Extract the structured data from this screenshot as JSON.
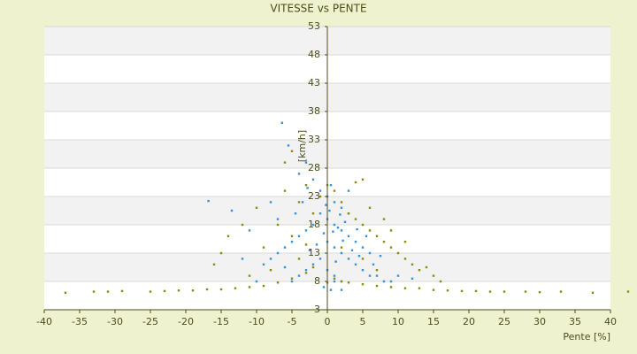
{
  "chart_data": {
    "type": "scatter",
    "title": "VITESSE vs PENTE",
    "x_label": "Pente [%]",
    "y_label": "[km/h]",
    "xlim": [
      -40,
      40
    ],
    "xticks": [
      -40,
      -35,
      -30,
      -25,
      -20,
      -15,
      -10,
      -5,
      0,
      5,
      10,
      15,
      20,
      25,
      30,
      35,
      40
    ],
    "ylim": [
      3,
      53
    ],
    "yticks": [
      3,
      8,
      13,
      18,
      23,
      28,
      33,
      38,
      43,
      48,
      53
    ],
    "grid": true,
    "series": [
      {
        "color": "#3a8fd6",
        "x": [
          -6.4,
          -5.5,
          -16.8,
          -13.5,
          -4,
          -3,
          -2,
          -1,
          0,
          1,
          2,
          3,
          -1,
          0,
          1,
          2,
          3,
          4,
          5,
          6,
          -2,
          -3,
          -4,
          -5,
          -6,
          -7,
          -8,
          -9,
          0,
          1,
          2,
          3,
          4,
          5,
          6,
          7,
          8,
          9,
          -1,
          -2,
          -3,
          -4,
          -5,
          0,
          1,
          2,
          -0.5,
          0.5,
          1.5,
          2.5,
          -0.5,
          0.3,
          1.2,
          3.5,
          4.5,
          -1.5,
          -2.5,
          2.2,
          0.8,
          -0.2,
          1.8,
          -3.5,
          -2.8,
          4.2,
          5.5,
          6.5,
          10,
          12,
          -10,
          -11,
          -12,
          -7,
          -8,
          3,
          0.5,
          -4.5,
          7.5,
          -6,
          1,
          2
        ],
        "values": [
          36,
          32,
          22.2,
          20.5,
          27,
          29,
          26,
          24,
          23,
          22,
          21,
          20,
          20,
          19,
          18,
          17,
          16,
          15,
          14,
          13,
          18,
          17,
          16,
          15,
          14,
          13,
          12,
          11,
          15,
          14,
          13,
          12,
          11,
          10,
          9,
          9,
          8,
          8,
          12,
          11,
          10,
          9,
          8,
          10,
          9,
          8,
          7,
          6.5,
          17.5,
          18.5,
          16.5,
          20.5,
          11.5,
          13.5,
          12.5,
          14.5,
          13.5,
          15.2,
          16.8,
          21.5,
          19.8,
          22,
          24.5,
          17.2,
          16,
          11,
          9,
          8.5,
          8,
          17,
          12,
          19,
          22,
          24,
          25,
          20,
          12.5,
          10.5,
          8,
          6.5
        ]
      },
      {
        "color": "#8a8a10",
        "x": [
          -37,
          -33,
          -31,
          -29,
          -25,
          -23,
          -21,
          -19,
          -17,
          -15,
          -13,
          -11,
          -9,
          -7,
          -5,
          -3,
          -2,
          1,
          2,
          3,
          5,
          7,
          9,
          11,
          13,
          15,
          17,
          19,
          21,
          23,
          25,
          28,
          30,
          33,
          37.5,
          42.5,
          -14,
          -12,
          -10,
          -9,
          -8,
          -7,
          -6,
          -5,
          -4,
          -3,
          -2,
          -1,
          0,
          1,
          2,
          4,
          5,
          3,
          4,
          5,
          6,
          7,
          8,
          9,
          10,
          11,
          12,
          13,
          14,
          15,
          -15,
          -16,
          -11,
          6,
          8,
          9,
          11,
          -4,
          -5,
          2,
          5,
          7,
          -6,
          -3,
          0,
          16
        ],
        "values": [
          6,
          6.2,
          6.2,
          6.3,
          6.2,
          6.3,
          6.4,
          6.4,
          6.6,
          6.6,
          6.8,
          7,
          7.2,
          7.8,
          8.5,
          9.5,
          10.5,
          8.5,
          8,
          7.8,
          7.5,
          7.2,
          7,
          6.8,
          6.8,
          6.5,
          6.4,
          6.3,
          6.3,
          6.2,
          6.2,
          6.2,
          6.1,
          6.2,
          6,
          6.2,
          16,
          18,
          21,
          14,
          10,
          18,
          24,
          31,
          22,
          25,
          20,
          23,
          25,
          24,
          22,
          25.5,
          26,
          20,
          19,
          18,
          17,
          16,
          15,
          14,
          13,
          12,
          11,
          10,
          10.5,
          9,
          13,
          11,
          9,
          21,
          19,
          17,
          15,
          12,
          16,
          14,
          12,
          10,
          29,
          14.5,
          7.8,
          8
        ]
      }
    ]
  }
}
